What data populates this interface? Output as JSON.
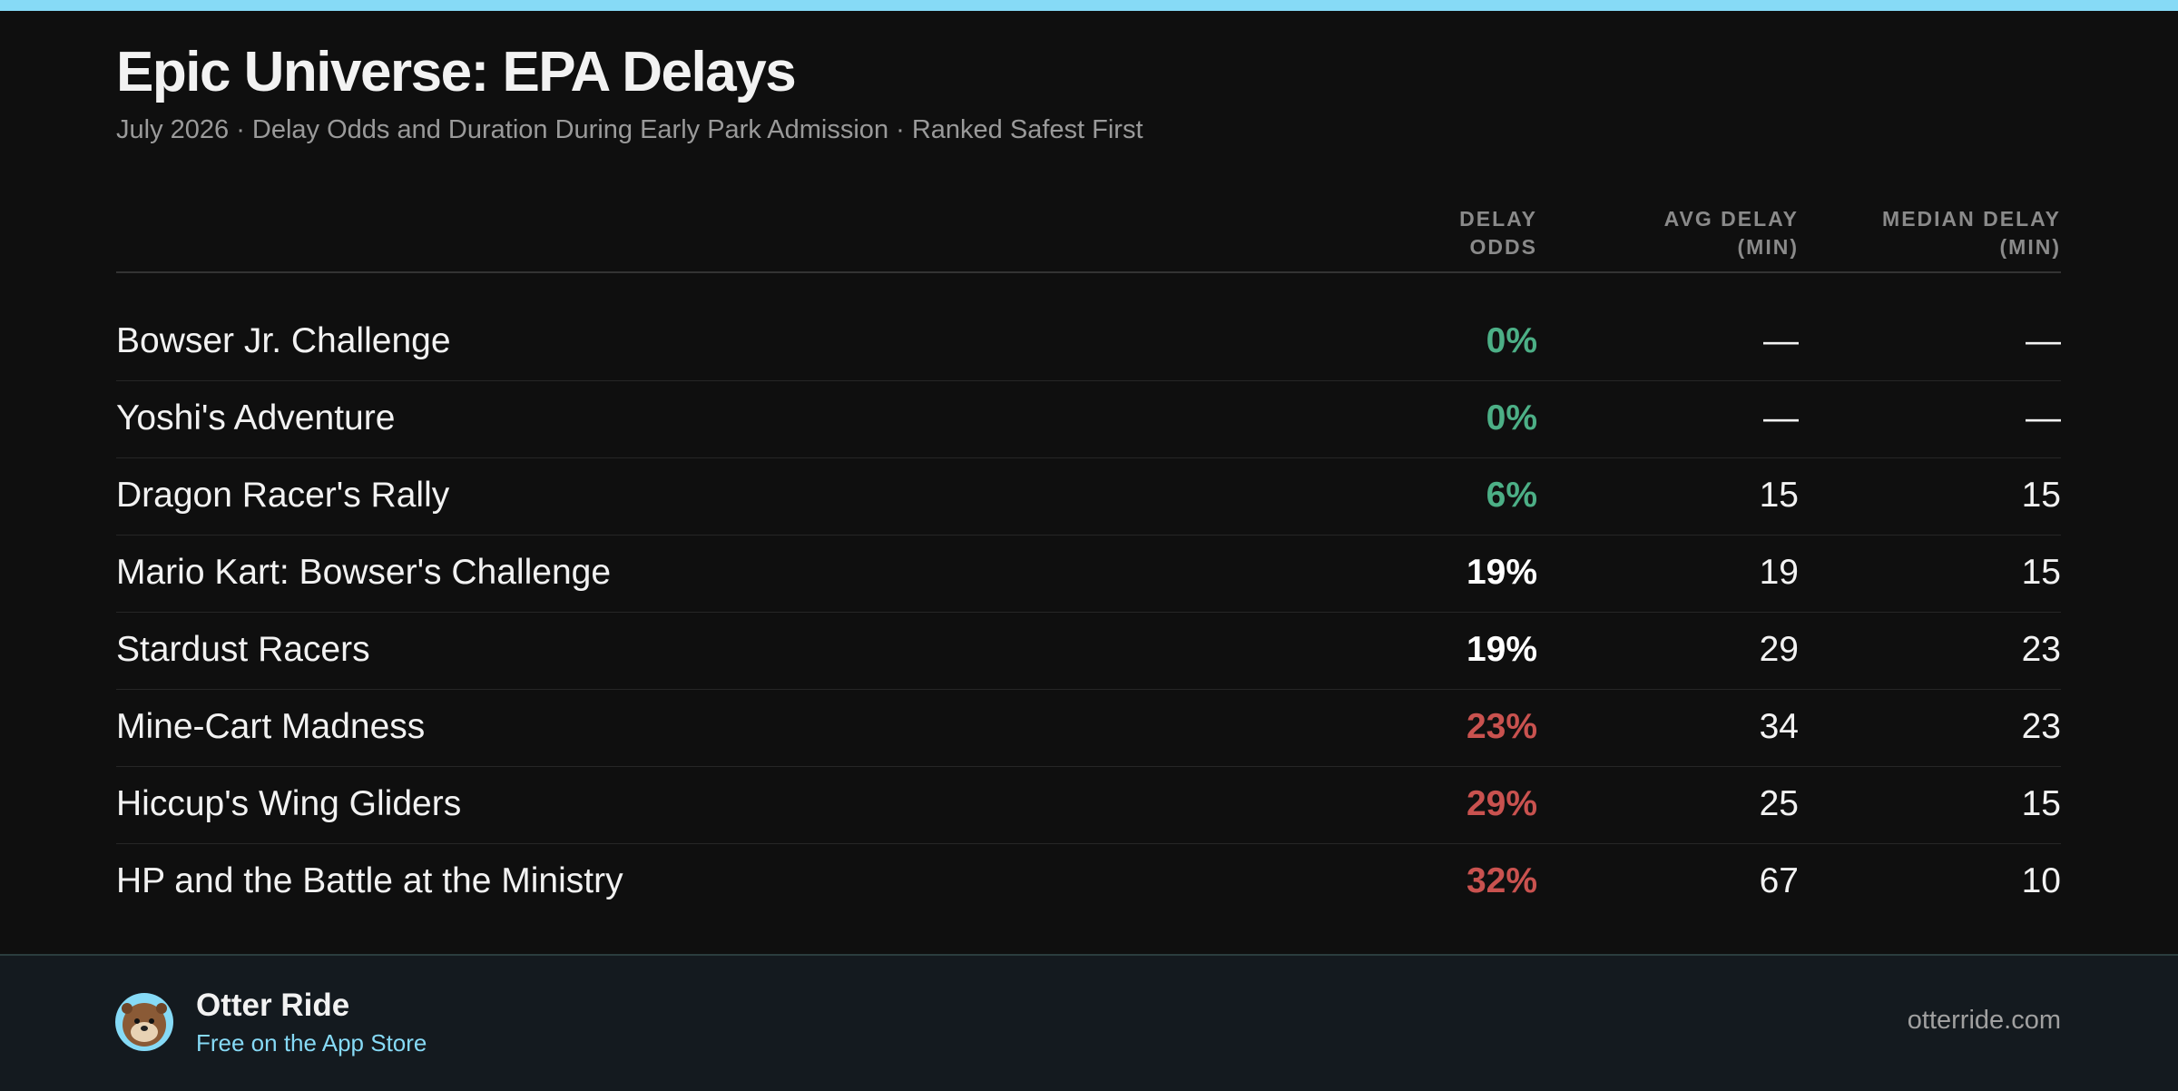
{
  "header": {
    "title": "Epic Universe: EPA Delays",
    "subtitle": "July 2026 · Delay Odds and Duration During Early Park Admission · Ranked Safest First"
  },
  "table": {
    "columns": [
      [
        "DELAY",
        "ODDS"
      ],
      [
        "AVG DELAY",
        "(MIN)"
      ],
      [
        "MEDIAN DELAY",
        "(MIN)"
      ]
    ],
    "rows": [
      {
        "name": "Bowser Jr. Challenge",
        "odds": "0%",
        "avg": "—",
        "median": "—",
        "odds_color": "#4caf86"
      },
      {
        "name": "Yoshi's Adventure",
        "odds": "0%",
        "avg": "—",
        "median": "—",
        "odds_color": "#4caf86"
      },
      {
        "name": "Dragon Racer's Rally",
        "odds": "6%",
        "avg": "15",
        "median": "15",
        "odds_color": "#4caf86"
      },
      {
        "name": "Mario Kart: Bowser's Challenge",
        "odds": "19%",
        "avg": "19",
        "median": "15",
        "odds_color": "#ffffff"
      },
      {
        "name": "Stardust Racers",
        "odds": "19%",
        "avg": "29",
        "median": "23",
        "odds_color": "#ffffff"
      },
      {
        "name": "Mine-Cart Madness",
        "odds": "23%",
        "avg": "34",
        "median": "23",
        "odds_color": "#c9524f"
      },
      {
        "name": "Hiccup's Wing Gliders",
        "odds": "29%",
        "avg": "25",
        "median": "15",
        "odds_color": "#c9524f"
      },
      {
        "name": "HP and the Battle at the Ministry",
        "odds": "32%",
        "avg": "67",
        "median": "10",
        "odds_color": "#c9524f"
      }
    ]
  },
  "footer": {
    "brand": "Otter Ride",
    "tagline": "Free on the App Store",
    "url": "otterride.com"
  }
}
